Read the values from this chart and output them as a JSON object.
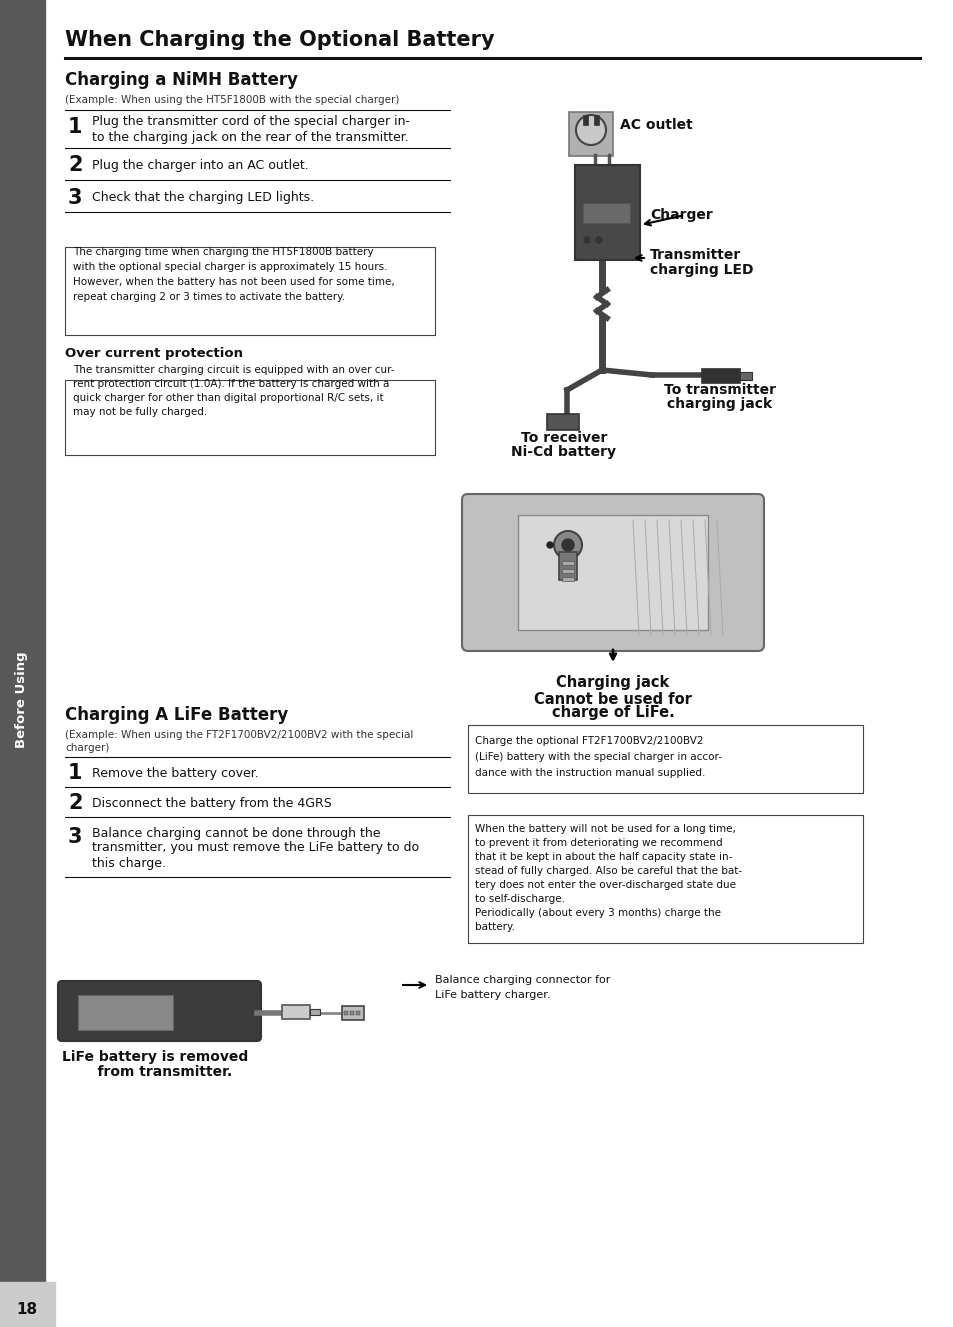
{
  "page_bg": "#ffffff",
  "sidebar_bg": "#585858",
  "sidebar_text": "Before Using",
  "sidebar_text_color": "#ffffff",
  "page_num": "18",
  "page_num_bg": "#cccccc",
  "title": "When Charging the Optional Battery",
  "section1_title": "Charging a NiMH Battery",
  "section1_example": "(Example: When using the HT5F1800B with the special charger)",
  "step1_num": "1",
  "step2_num": "2",
  "step2_text": "Plug the charger into an AC outlet.",
  "step3_num": "3",
  "step3_text": "Check that the charging LED lights.",
  "note1_line1": "The charging time when charging the HT5F1800B battery",
  "note1_line2": "with the optional special charger is approximately 15 hours.",
  "note1_line3": "However, when the battery has not been used for some time,",
  "note1_line4": "repeat charging 2 or 3 times to activate the battery.",
  "overcurrent_title": "Over current protection",
  "oc_line1": "The transmitter charging circuit is equipped with an over cur-",
  "oc_line2": "rent protection circuit (1.0A). If the battery is charged with a",
  "oc_line3": "quick charger for other than digital proportional R/C sets, it",
  "oc_line4": "may not be fully charged.",
  "diagram1_ac_outlet": "AC outlet",
  "diagram1_charger": "Charger",
  "diagram1_tx_led_line1": "Transmitter",
  "diagram1_tx_led_line2": "charging LED",
  "diagram1_receiver_line1": "To receiver",
  "diagram1_receiver_line2": "Ni-Cd battery",
  "diagram1_transmitter_line1": "To transmitter",
  "diagram1_transmitter_line2": "charging jack",
  "diagram2_line1": "Charging jack",
  "diagram2_line2": "Cannot be used for",
  "diagram2_line3": "charge of LiFe.",
  "section2_title": "Charging A LiFe Battery",
  "section2_example_line1": "(Example: When using the FT2F1700BV2/2100BV2 with the special",
  "section2_example_line2": "charger)",
  "step4_num": "1",
  "step4_text": "Remove the battery cover.",
  "step5_num": "2",
  "step5_text": "Disconnect the battery from the 4GRS",
  "step6_num": "3",
  "step6_line1": "Balance charging cannot be done through the",
  "step6_line2": "transmitter, you must remove the LiFe battery to do",
  "step6_line3": "this charge.",
  "note2_line1": "Charge the optional FT2F1700BV2/2100BV2",
  "note2_line2": "(LiFe) battery with the special charger in accor-",
  "note2_line3": "dance with the instruction manual supplied.",
  "note3_line1": "When the battery will not be used for a long time,",
  "note3_line2": "to prevent it from deteriorating we recommend",
  "note3_line3": "that it be kept in about the half capacity state in-",
  "note3_line4": "stead of fully charged. Also be careful that the bat-",
  "note3_line5": "tery does not enter the over-discharged state due",
  "note3_line6": "to self-discharge.",
  "note3_line7": "Periodically (about every 3 months) charge the",
  "note3_line8": "battery.",
  "diagram3_caption_line1": "Balance charging connector for",
  "diagram3_caption_line2": "LiFe battery charger.",
  "diagram3_label_line1": "LiFe battery is removed",
  "diagram3_label_line2": "    from transmitter."
}
